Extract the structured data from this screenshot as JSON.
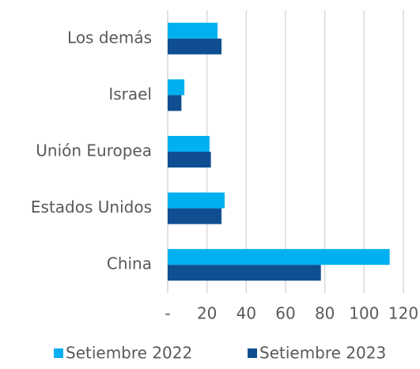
{
  "chart_data": {
    "type": "hbar",
    "categories": [
      "Los demás",
      "Israel",
      "Unión Europea",
      "Estados Unidos",
      "China"
    ],
    "series": [
      {
        "name": "Setiembre 2022",
        "color": "#00b0f0",
        "values": [
          25.4,
          8.5,
          21.3,
          29,
          113
        ]
      },
      {
        "name": "Setiembre 2023",
        "color": "#0f4f91",
        "values": [
          27.4,
          7,
          22,
          27.4,
          78
        ]
      }
    ],
    "xlim": [
      0,
      120
    ],
    "xticks": [
      {
        "value": 0,
        "label": "-"
      },
      20,
      40,
      60,
      80,
      100,
      120
    ],
    "grid": true,
    "legend": "bottom"
  }
}
